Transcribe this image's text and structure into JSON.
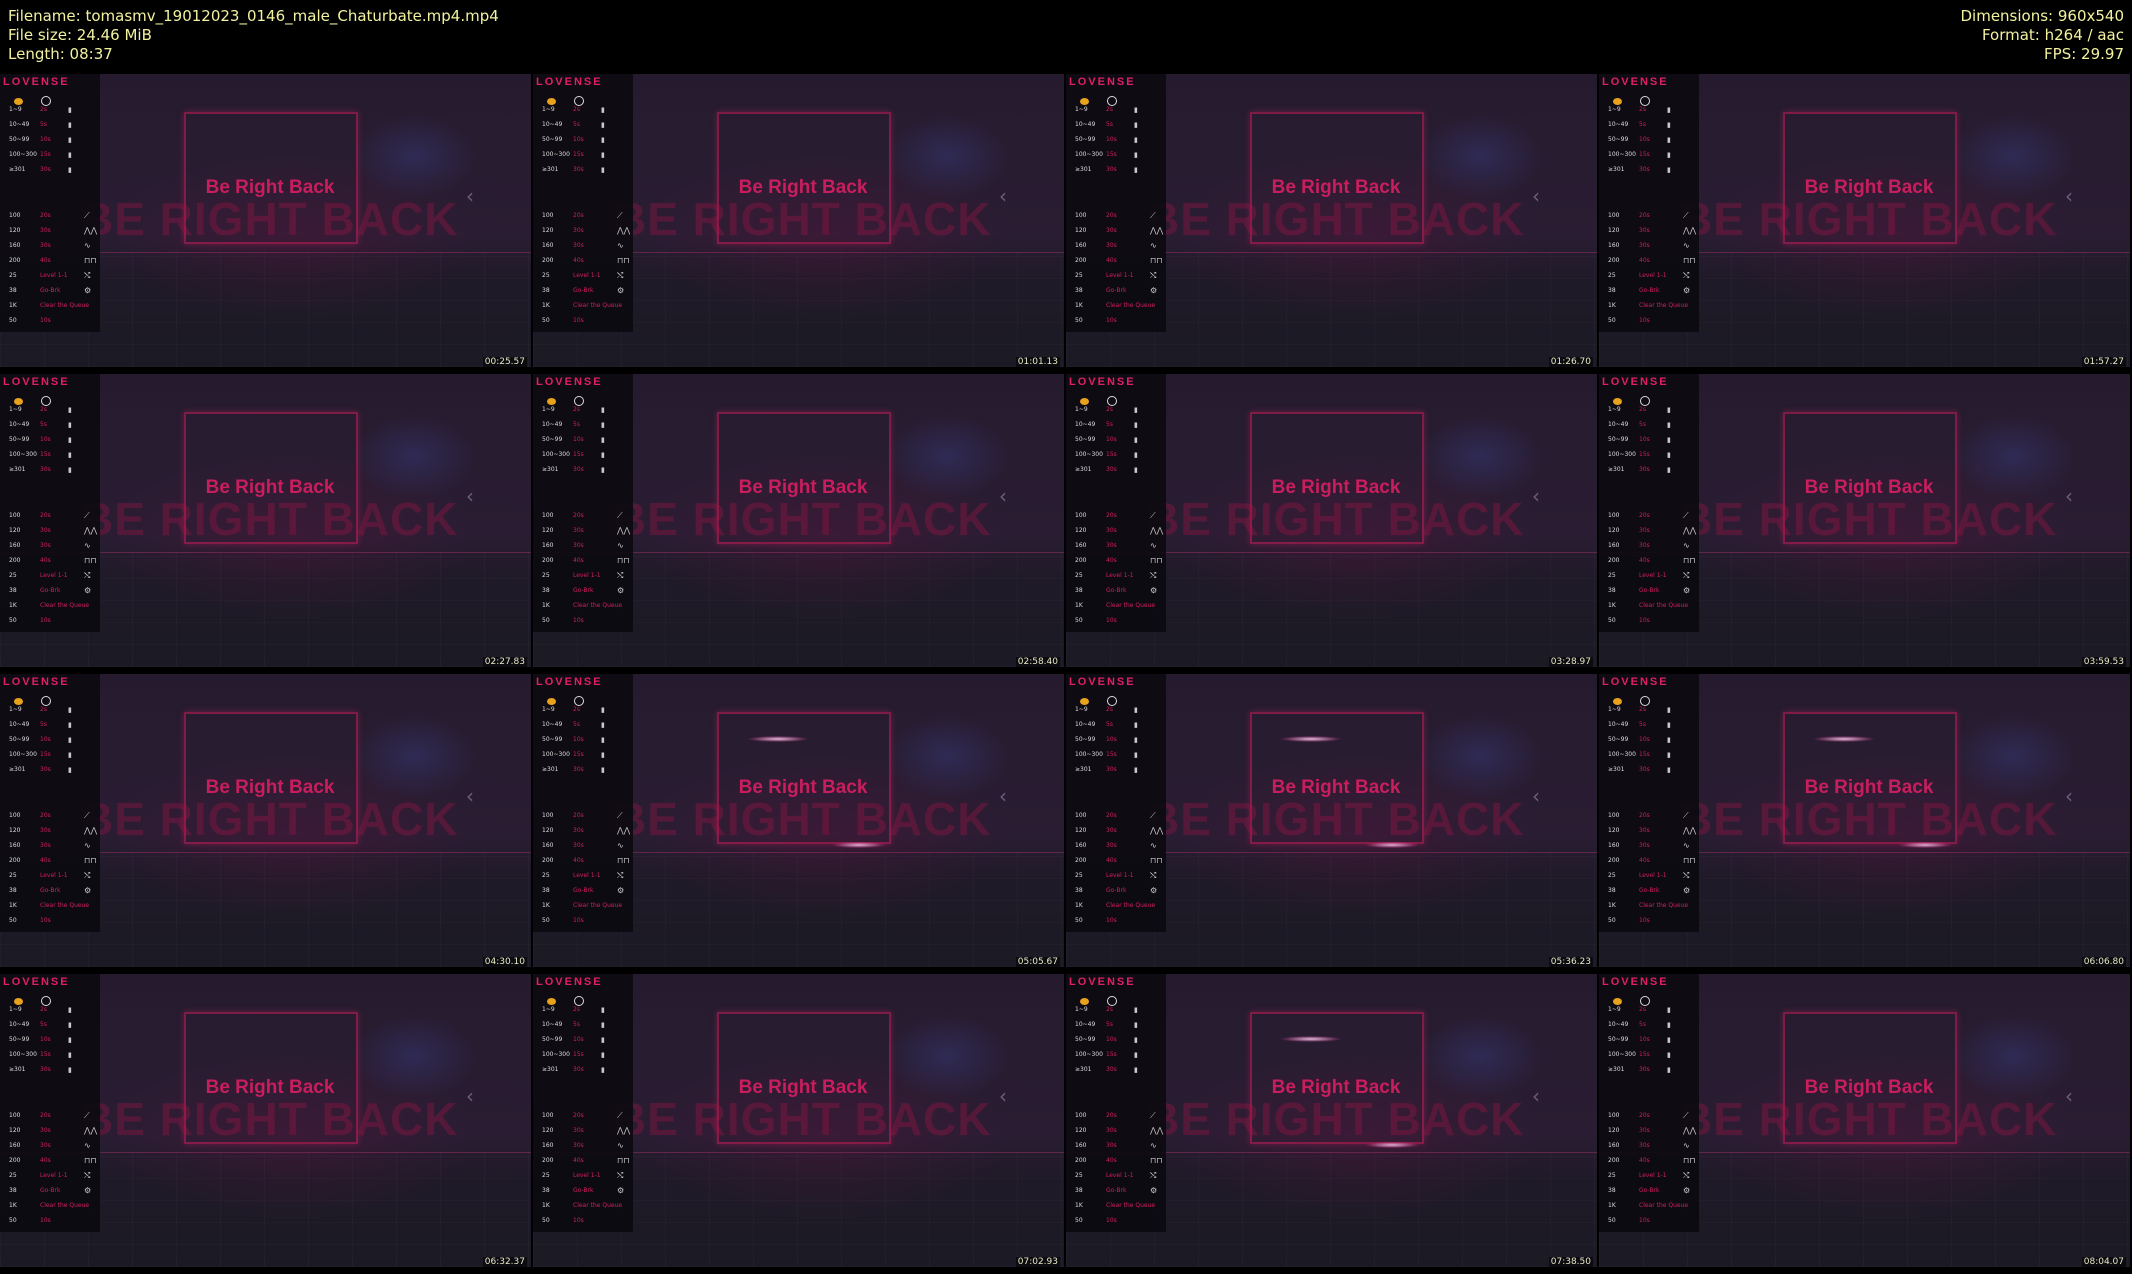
{
  "header": {
    "filename": "Filename: tomasmv_19012023_0146_male_Chaturbate.mp4.mp4",
    "filesize": "File size: 24.46 MiB",
    "length": "Length: 08:37",
    "dimensions": "Dimensions: 960x540",
    "format": "Format: h264 / aac",
    "fps": "FPS: 29.97"
  },
  "frame_content": {
    "brand": "LOVENSE",
    "small_title": "Be Right Back",
    "big_title": "BE RIGHT BACK",
    "tip_rows": [
      {
        "key": "1~9",
        "value": "2s"
      },
      {
        "key": "10~49",
        "value": "5s"
      },
      {
        "key": "50~99",
        "value": "10s"
      },
      {
        "key": "100~300",
        "value": "15s"
      },
      {
        "key": "≥301",
        "value": "30s"
      }
    ],
    "pattern_rows": [
      {
        "key": "100",
        "value": "20s"
      },
      {
        "key": "120",
        "value": "30s"
      },
      {
        "key": "160",
        "value": "30s"
      },
      {
        "key": "200",
        "value": "40s"
      },
      {
        "key": "25",
        "value": "Level 1-1"
      },
      {
        "key": "38",
        "value": "Go-Brk"
      },
      {
        "key": "1K",
        "value": "Clear the Queue"
      },
      {
        "key": "50",
        "value": "10s"
      }
    ]
  },
  "thumbnails": [
    {
      "timestamp": "00:25.57"
    },
    {
      "timestamp": "01:01.13"
    },
    {
      "timestamp": "01:26.70"
    },
    {
      "timestamp": "01:57.27"
    },
    {
      "timestamp": "02:27.83"
    },
    {
      "timestamp": "02:58.40"
    },
    {
      "timestamp": "03:28.97"
    },
    {
      "timestamp": "03:59.53"
    },
    {
      "timestamp": "04:30.10"
    },
    {
      "timestamp": "05:05.67"
    },
    {
      "timestamp": "05:36.23"
    },
    {
      "timestamp": "06:06.80"
    },
    {
      "timestamp": "06:32.37"
    },
    {
      "timestamp": "07:02.93"
    },
    {
      "timestamp": "07:38.50"
    },
    {
      "timestamp": "08:04.07"
    }
  ],
  "colors": {
    "header_text": "#f2f2a0",
    "accent": "#e01f67",
    "background": "#000000"
  }
}
